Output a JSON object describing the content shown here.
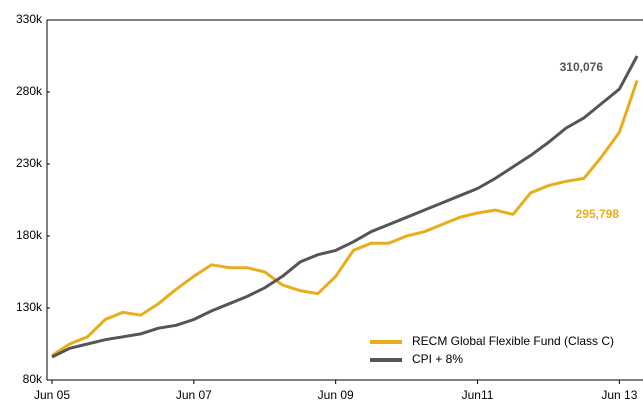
{
  "chart_data": {
    "type": "line",
    "x": [
      "2005-06",
      "2005-09",
      "2005-12",
      "2006-03",
      "2006-06",
      "2006-09",
      "2006-12",
      "2007-03",
      "2007-06",
      "2007-09",
      "2007-12",
      "2008-03",
      "2008-06",
      "2008-09",
      "2008-12",
      "2009-03",
      "2009-06",
      "2009-09",
      "2009-12",
      "2010-03",
      "2010-06",
      "2010-09",
      "2010-12",
      "2011-03",
      "2011-06",
      "2011-09",
      "2011-12",
      "2012-03",
      "2012-06",
      "2012-09",
      "2012-12",
      "2013-03",
      "2013-06",
      "2013-09"
    ],
    "series": [
      {
        "name": "RECM Global Flexible Fund (Class C)",
        "color": "#e8ad1a",
        "values": [
          97000,
          105000,
          110000,
          122000,
          127000,
          125000,
          133000,
          143000,
          152000,
          160000,
          158000,
          158000,
          155000,
          146000,
          142000,
          140000,
          152000,
          170000,
          175000,
          175000,
          180000,
          183000,
          188000,
          193000,
          196000,
          198000,
          195000,
          210000,
          215000,
          218000,
          220000,
          235000,
          252000,
          288000
        ]
      },
      {
        "name": "CPI + 8%",
        "color": "#555555",
        "values": [
          96000,
          102000,
          105000,
          108000,
          110000,
          112000,
          116000,
          118000,
          122000,
          128000,
          133000,
          138000,
          144000,
          152000,
          162000,
          167000,
          170000,
          176000,
          183000,
          188000,
          193000,
          198000,
          203000,
          208000,
          213000,
          220000,
          228000,
          236000,
          245000,
          255000,
          262000,
          272000,
          282000,
          305000
        ]
      }
    ],
    "annotations": [
      {
        "text": "310,076",
        "color": "#555555"
      },
      {
        "text": "295,798",
        "color": "#e8ad1a"
      }
    ],
    "xlim": [
      "2005-06",
      "2013-10"
    ],
    "xticks": [
      {
        "value": "2005-06",
        "label": "Jun 05"
      },
      {
        "value": "2007-06",
        "label": "Jun 07"
      },
      {
        "value": "2009-06",
        "label": "Jun 09"
      },
      {
        "value": "2011-06",
        "label": "Jun11"
      },
      {
        "value": "2013-06",
        "label": "Jun 13"
      }
    ],
    "ylim": [
      80000,
      330000
    ],
    "yticks": [
      {
        "value": 80000,
        "label": "80k"
      },
      {
        "value": 130000,
        "label": "130k"
      },
      {
        "value": 180000,
        "label": "180k"
      },
      {
        "value": 230000,
        "label": "230k"
      },
      {
        "value": 280000,
        "label": "280k"
      },
      {
        "value": 330000,
        "label": "330k"
      }
    ],
    "grid": false,
    "legend": "lower right"
  }
}
